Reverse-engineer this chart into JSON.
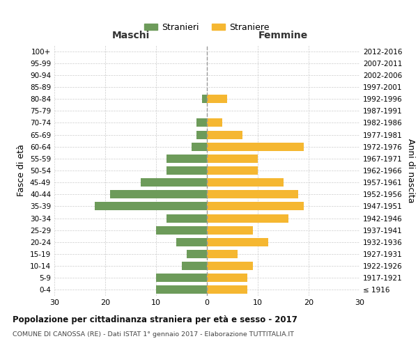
{
  "age_groups": [
    "100+",
    "95-99",
    "90-94",
    "85-89",
    "80-84",
    "75-79",
    "70-74",
    "65-69",
    "60-64",
    "55-59",
    "50-54",
    "45-49",
    "40-44",
    "35-39",
    "30-34",
    "25-29",
    "20-24",
    "15-19",
    "10-14",
    "5-9",
    "0-4"
  ],
  "birth_years": [
    "≤ 1916",
    "1917-1921",
    "1922-1926",
    "1927-1931",
    "1932-1936",
    "1937-1941",
    "1942-1946",
    "1947-1951",
    "1952-1956",
    "1957-1961",
    "1962-1966",
    "1967-1971",
    "1972-1976",
    "1977-1981",
    "1982-1986",
    "1987-1991",
    "1992-1996",
    "1997-2001",
    "2002-2006",
    "2007-2011",
    "2012-2016"
  ],
  "maschi": [
    0,
    0,
    0,
    0,
    1,
    0,
    2,
    2,
    3,
    8,
    8,
    13,
    19,
    22,
    8,
    10,
    6,
    4,
    5,
    10,
    10
  ],
  "femmine": [
    0,
    0,
    0,
    0,
    4,
    0,
    3,
    7,
    19,
    10,
    10,
    15,
    18,
    19,
    16,
    9,
    12,
    6,
    9,
    8,
    8
  ],
  "color_maschi": "#6d9b5a",
  "color_femmine": "#f5b731",
  "title": "Popolazione per cittadinanza straniera per età e sesso - 2017",
  "subtitle": "COMUNE DI CANOSSA (RE) - Dati ISTAT 1° gennaio 2017 - Elaborazione TUTTITALIA.IT",
  "label_maschi": "Stranieri",
  "label_femmine": "Straniere",
  "xlabel_left": "Maschi",
  "xlabel_right": "Femmine",
  "ylabel_left": "Fasce di età",
  "ylabel_right": "Anni di nascita",
  "xlim": 30,
  "bg_color": "#ffffff",
  "grid_color": "#cccccc",
  "bar_height": 0.7
}
